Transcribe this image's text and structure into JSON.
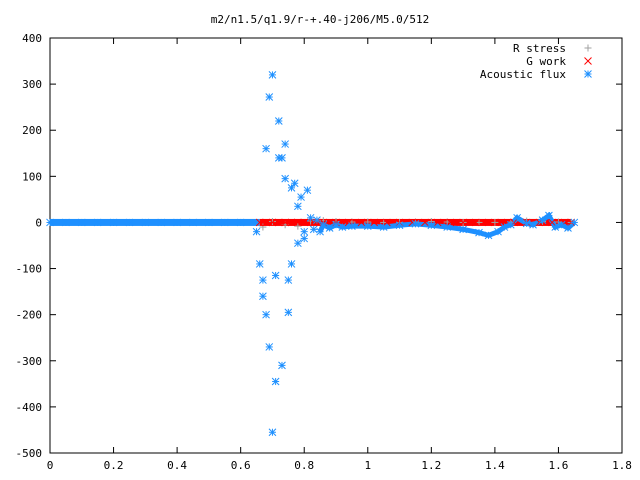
{
  "chart_data": {
    "type": "scatter",
    "title": "m2/n1.5/q1.9/r-+.40-j206/M5.0/512",
    "xlabel": "",
    "ylabel": "",
    "xlim": [
      0,
      1.8
    ],
    "ylim": [
      -500,
      400
    ],
    "x_ticks": [
      "0",
      "0.2",
      "0.4",
      "0.6",
      "0.8",
      "1",
      "1.2",
      "1.4",
      "1.6",
      "1.8"
    ],
    "y_ticks": [
      "400",
      "300",
      "200",
      "100",
      "0",
      "-100",
      "-200",
      "-300",
      "-400",
      "-500"
    ],
    "grid": false,
    "legend_position": "top-right",
    "series": [
      {
        "name": "R stress",
        "color": "#a0a0a0",
        "marker": "plus",
        "x": [
          0.67,
          0.7,
          0.74,
          0.78,
          0.82,
          0.86,
          0.9,
          0.95,
          1.0,
          1.05,
          1.1,
          1.15,
          1.2,
          1.25,
          1.3,
          1.35,
          1.4,
          1.45,
          1.5,
          1.55,
          1.6,
          1.64
        ],
        "y": [
          -10,
          2,
          -5,
          -8,
          3,
          4,
          2,
          1,
          1,
          0,
          0,
          1,
          2,
          1,
          0,
          0,
          0,
          1,
          3,
          2,
          1,
          0
        ]
      },
      {
        "name": "G work",
        "color": "#ff0000",
        "marker": "cross",
        "x": [
          0.66,
          0.68,
          0.7,
          0.72,
          0.74,
          0.76,
          0.78,
          0.8,
          0.83,
          0.86,
          0.9,
          0.94,
          0.98,
          1.02,
          1.06,
          1.1,
          1.14,
          1.18,
          1.22,
          1.26,
          1.3,
          1.34,
          1.38,
          1.42,
          1.46,
          1.5,
          1.54,
          1.58,
          1.62,
          1.64
        ],
        "y": [
          0,
          0,
          0,
          0,
          0,
          0,
          0,
          0,
          0,
          0,
          0,
          0,
          0,
          0,
          0,
          0,
          0,
          0,
          0,
          0,
          0,
          0,
          0,
          0,
          0,
          0,
          0,
          0,
          0,
          0
        ]
      },
      {
        "name": "Acoustic flux",
        "color": "#1e90ff",
        "marker": "star",
        "x": [
          0.0,
          0.05,
          0.1,
          0.15,
          0.2,
          0.25,
          0.3,
          0.35,
          0.4,
          0.45,
          0.5,
          0.55,
          0.6,
          0.65,
          0.66,
          0.67,
          0.67,
          0.68,
          0.68,
          0.69,
          0.69,
          0.7,
          0.7,
          0.71,
          0.71,
          0.72,
          0.72,
          0.73,
          0.73,
          0.74,
          0.74,
          0.75,
          0.75,
          0.76,
          0.76,
          0.77,
          0.78,
          0.78,
          0.79,
          0.8,
          0.8,
          0.81,
          0.82,
          0.83,
          0.84,
          0.85,
          0.86,
          0.88,
          0.9,
          0.92,
          0.95,
          1.0,
          1.05,
          1.1,
          1.15,
          1.2,
          1.25,
          1.3,
          1.35,
          1.38,
          1.41,
          1.43,
          1.45,
          1.47,
          1.5,
          1.52,
          1.55,
          1.57,
          1.59,
          1.61,
          1.63,
          1.65
        ],
        "y": [
          0,
          0,
          0,
          0,
          0,
          0,
          0,
          0,
          0,
          0,
          0,
          0,
          0,
          -20,
          -90,
          -125,
          -160,
          -200,
          160,
          -270,
          272,
          -455,
          320,
          -115,
          -345,
          140,
          220,
          -310,
          140,
          95,
          170,
          -195,
          -125,
          75,
          -90,
          85,
          -45,
          35,
          55,
          -20,
          -35,
          70,
          10,
          -15,
          5,
          -20,
          -5,
          -12,
          -5,
          -10,
          -8,
          -8,
          -10,
          -6,
          -3,
          -6,
          -10,
          -15,
          -22,
          -28,
          -20,
          -10,
          -5,
          10,
          -2,
          -5,
          5,
          15,
          -10,
          -5,
          -12,
          0
        ]
      }
    ]
  }
}
